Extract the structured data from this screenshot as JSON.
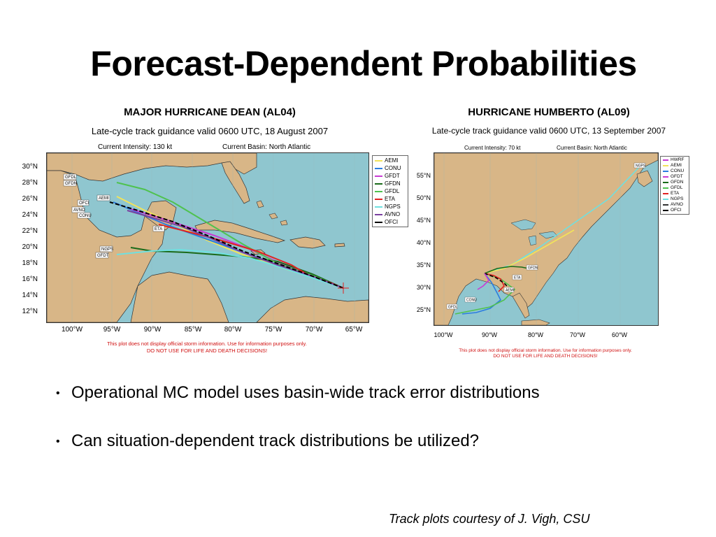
{
  "slide": {
    "title": "Forecast-Dependent Probabilities",
    "bullets": [
      "Operational MC model uses basin-wide track error distributions",
      "Can situation-dependent track distributions be utilized?"
    ],
    "credit": "Track plots courtesy of J. Vigh, CSU"
  },
  "figures": [
    {
      "title": "MAJOR HURRICANE DEAN (AL04)",
      "subtitle": "Late-cycle track guidance valid 0600 UTC, 18 August 2007",
      "intensity": "Current Intensity: 130 kt",
      "basin": "Current Basin: North Atlantic",
      "lat_labels": [
        "30°N",
        "28°N",
        "26°N",
        "24°N",
        "22°N",
        "20°N",
        "18°N",
        "16°N",
        "14°N",
        "12°N"
      ],
      "lon_labels": [
        "100°W",
        "95°W",
        "90°W",
        "85°W",
        "80°W",
        "75°W",
        "70°W",
        "65°W"
      ],
      "legend": [
        {
          "name": "AEMI",
          "color": "#f2e35a"
        },
        {
          "name": "CONU",
          "color": "#2b7de0"
        },
        {
          "name": "GFDT",
          "color": "#c93bd4"
        },
        {
          "name": "GFDN",
          "color": "#1a6b1a"
        },
        {
          "name": "GFDL",
          "color": "#4fc24f"
        },
        {
          "name": "ETA",
          "color": "#e02222"
        },
        {
          "name": "NGPS",
          "color": "#6fe0e0"
        },
        {
          "name": "AVNO",
          "color": "#7a3fa0"
        },
        {
          "name": "OFCI",
          "color": "#000000"
        }
      ],
      "map_labels": [
        "GFDL",
        "GFDN",
        "OFCI",
        "AEMI",
        "AVNO",
        "CONU",
        "ETA",
        "NGPS",
        "GFDT"
      ],
      "disclaimer": [
        "This plot does not display official storm information. Use for information purposes only.",
        "DO NOT USE FOR LIFE AND DEATH DECISIONS!"
      ]
    },
    {
      "title": "HURRICANE HUMBERTO (AL09)",
      "subtitle": "Late-cycle track guidance valid 0600 UTC, 13 September 2007",
      "intensity": "Current Intensity: 70 kt",
      "basin": "Current Basin: North Atlantic",
      "lat_labels": [
        "55°N",
        "50°N",
        "45°N",
        "40°N",
        "35°N",
        "30°N",
        "25°N"
      ],
      "lon_labels": [
        "100°W",
        "90°W",
        "80°W",
        "70°W",
        "60°W"
      ],
      "legend": [
        {
          "name": "HWRF",
          "color": "#c93bd4"
        },
        {
          "name": "AEMI",
          "color": "#f2e35a"
        },
        {
          "name": "CONU",
          "color": "#2b7de0"
        },
        {
          "name": "GFDT",
          "color": "#c93bd4"
        },
        {
          "name": "GFDN",
          "color": "#1a6b1a"
        },
        {
          "name": "GFDL",
          "color": "#4fc24f"
        },
        {
          "name": "ETA",
          "color": "#e02222"
        },
        {
          "name": "NGPS",
          "color": "#6fe0e0"
        },
        {
          "name": "AVNO",
          "color": "#333333"
        },
        {
          "name": "OFCI",
          "color": "#000000"
        }
      ],
      "map_labels": [
        "NGPS",
        "GFDN",
        "ETA",
        "AEMI",
        "CONU",
        "GFDL"
      ],
      "disclaimer": [
        "This plot does not display official storm information. Use for information purposes only.",
        "DO NOT USE FOR LIFE AND DEATH DECISIONS!"
      ]
    }
  ]
}
